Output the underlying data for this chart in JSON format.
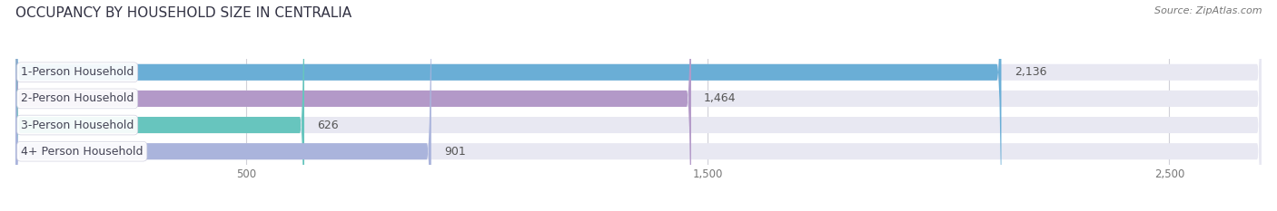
{
  "title": "OCCUPANCY BY HOUSEHOLD SIZE IN CENTRALIA",
  "source": "Source: ZipAtlas.com",
  "categories": [
    "1-Person Household",
    "2-Person Household",
    "3-Person Household",
    "4+ Person Household"
  ],
  "values": [
    2136,
    1464,
    626,
    901
  ],
  "bar_colors": [
    "#6aaed6",
    "#b399c8",
    "#67c5be",
    "#aab4dc"
  ],
  "bar_bg_color": "#e8e8f2",
  "xlim": [
    0,
    2700
  ],
  "xticks": [
    500,
    1500,
    2500
  ],
  "label_fontsize": 9,
  "value_fontsize": 9,
  "title_fontsize": 11,
  "source_fontsize": 8,
  "bar_height": 0.62,
  "background_color": "#ffffff",
  "grid_color": "#d0d0d8",
  "label_color": "#444455",
  "value_color": "#555555"
}
